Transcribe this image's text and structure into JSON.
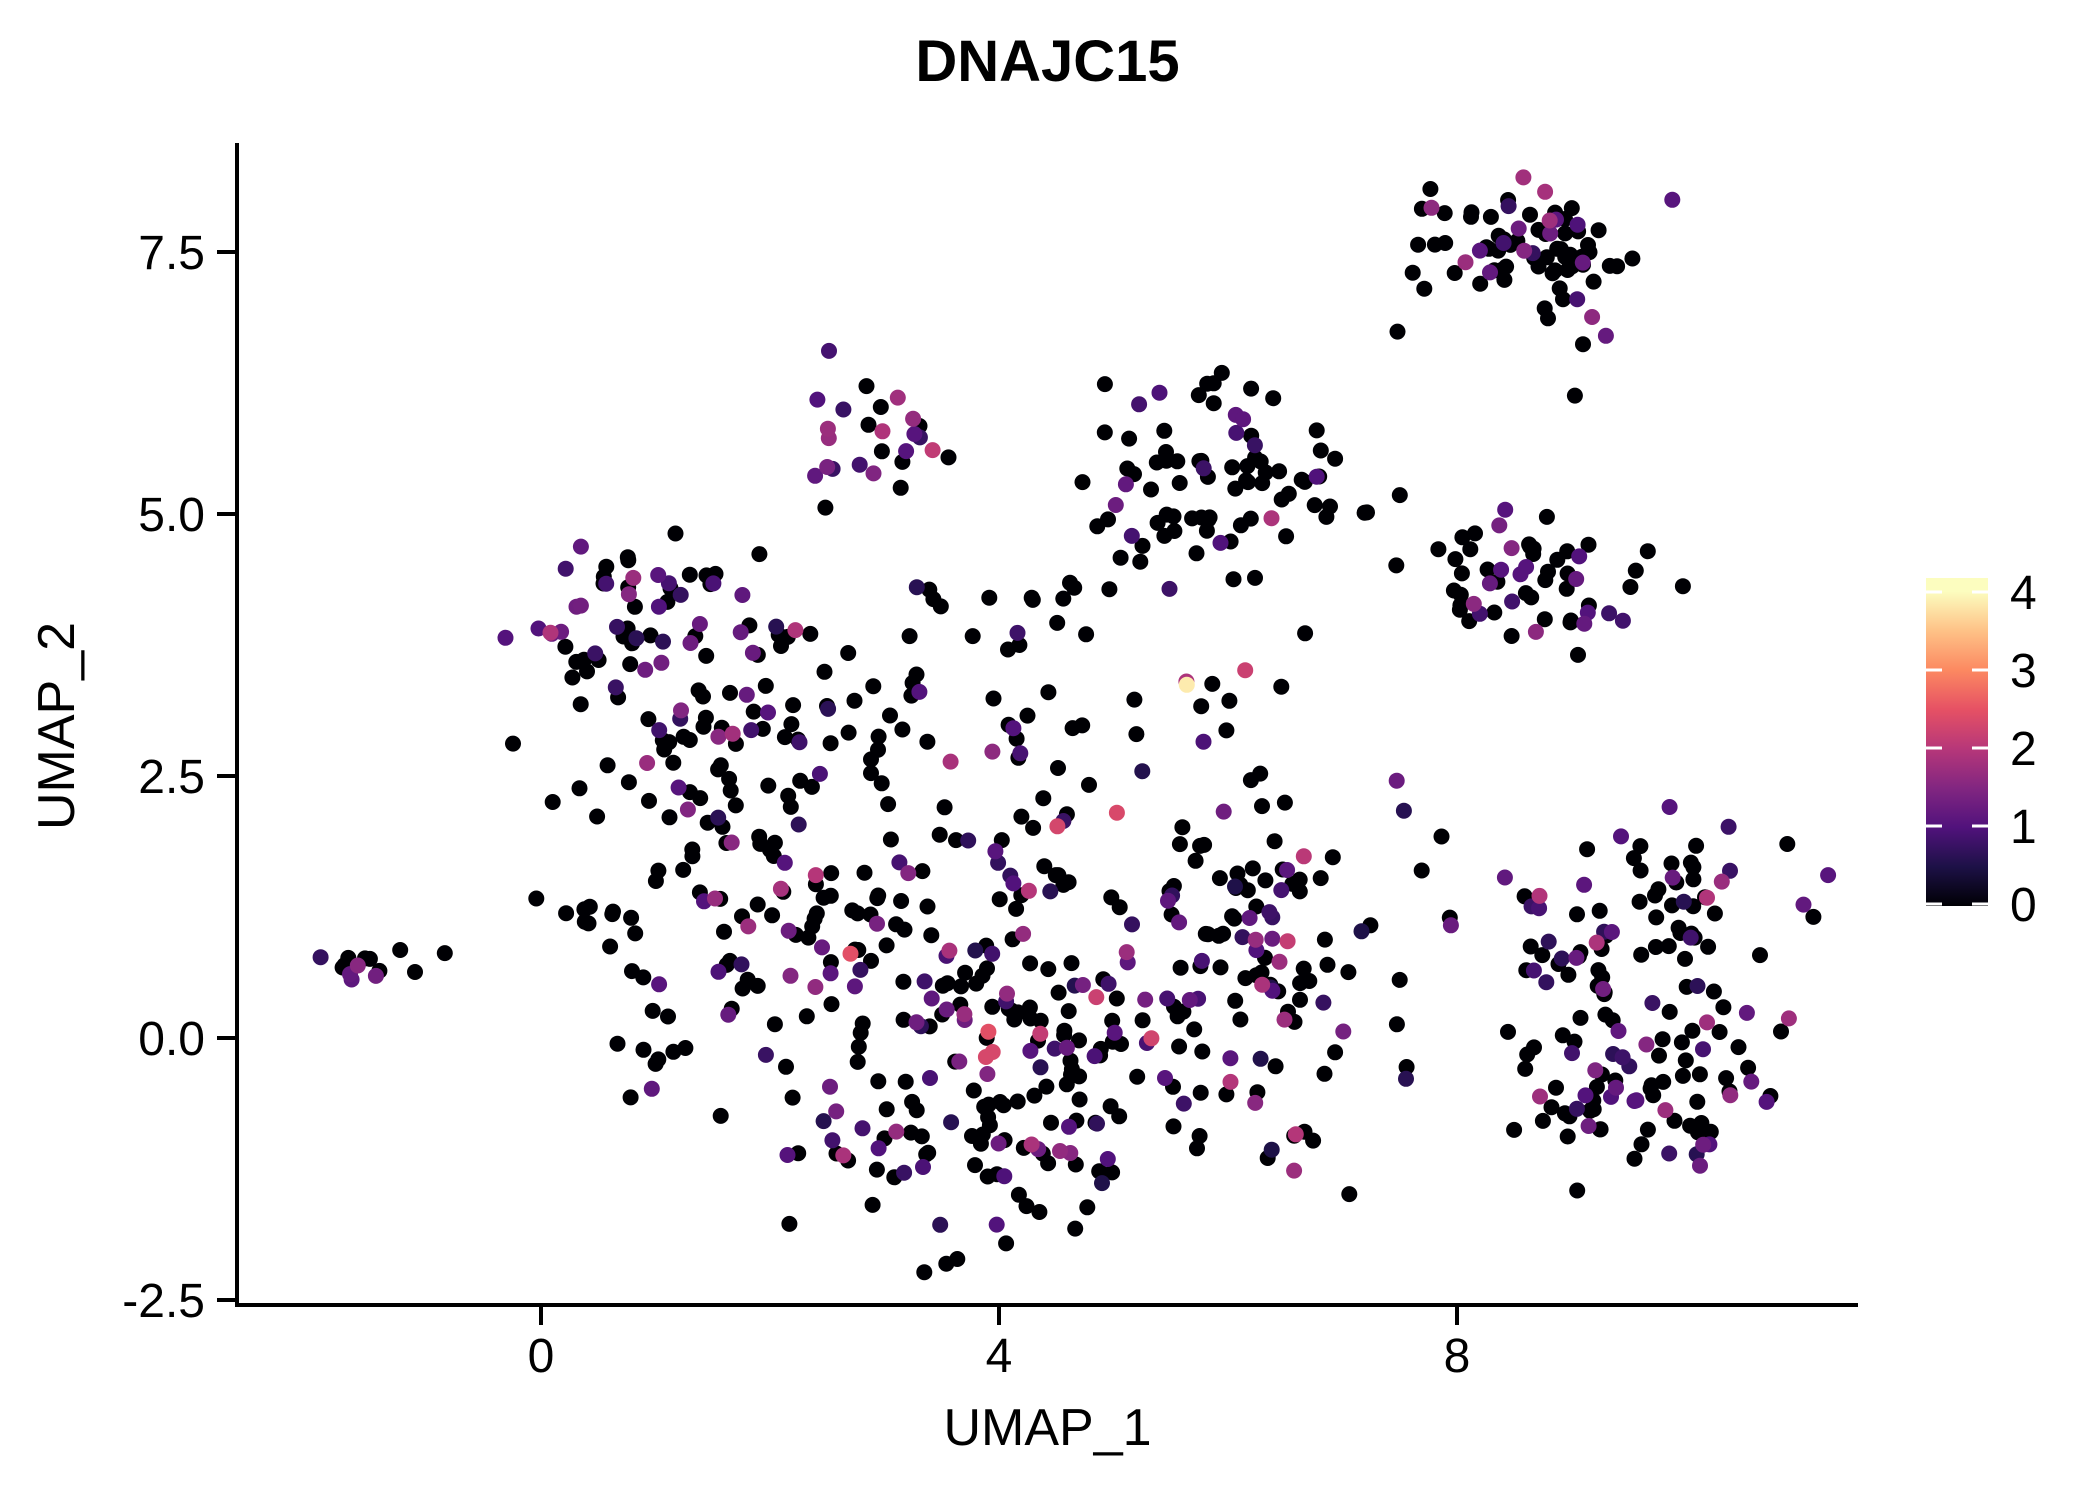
{
  "title": "DNAJC15",
  "background_color": "#ffffff",
  "axis_color": "#000000",
  "text_color": "#000000",
  "chart_data": {
    "type": "scatter",
    "title": "DNAJC15",
    "xlabel": "UMAP_1",
    "ylabel": "UMAP_2",
    "x_ticks": [
      0,
      4,
      8
    ],
    "x_tick_labels": [
      "0",
      "4",
      "8"
    ],
    "y_ticks": [
      -2.5,
      0.0,
      2.5,
      5.0,
      7.5
    ],
    "y_tick_labels": [
      "-2.5",
      "0.0",
      "2.5",
      "5.0",
      "7.5"
    ],
    "x_range": [
      -2.66,
      11.52
    ],
    "y_range": [
      -2.55,
      8.54
    ],
    "grid": false,
    "point_radius_px": 8,
    "n_points_estimate": 1030,
    "value_range": [
      0,
      4.17
    ],
    "colormap_name": "magma",
    "colormap_stops": [
      [
        0.0,
        "#000004"
      ],
      [
        0.125,
        "#1d1147"
      ],
      [
        0.25,
        "#51127c"
      ],
      [
        0.375,
        "#822681"
      ],
      [
        0.5,
        "#b73779"
      ],
      [
        0.625,
        "#e65164"
      ],
      [
        0.75,
        "#fc8961"
      ],
      [
        0.875,
        "#fec287"
      ],
      [
        1.0,
        "#fcfdbf"
      ]
    ],
    "legend": {
      "position": "right",
      "tick_values": [
        0,
        1,
        2,
        3,
        4
      ],
      "tick_labels": [
        "0",
        "1",
        "2",
        "3",
        "4"
      ],
      "tick_mark_color": "#ffffff"
    },
    "seed": 42,
    "clusters": [
      {
        "name": "far-left-blob",
        "n": 11,
        "cx": -1.63,
        "cy": 0.72,
        "sdx": 0.09,
        "sdy": 0.09,
        "expr": [
          [
            0.55,
            0,
            0
          ],
          [
            0.35,
            0.7,
            1.4
          ],
          [
            0.1,
            1.5,
            1.9
          ]
        ]
      },
      {
        "name": "left-main-upper",
        "n": 60,
        "cx": 0.9,
        "cy": 3.95,
        "sdx": 0.55,
        "sdy": 0.42,
        "expr": [
          [
            0.58,
            0,
            0
          ],
          [
            0.32,
            0.6,
            1.4
          ],
          [
            0.1,
            1.4,
            2.0
          ]
        ]
      },
      {
        "name": "left-main-lower",
        "n": 42,
        "cx": 1.55,
        "cy": 2.85,
        "sdx": 0.7,
        "sdy": 0.55,
        "expr": [
          [
            0.68,
            0,
            0
          ],
          [
            0.26,
            0.6,
            1.3
          ],
          [
            0.06,
            1.4,
            1.9
          ]
        ]
      },
      {
        "name": "top-mid-cluster",
        "n": 25,
        "cx": 2.78,
        "cy": 5.72,
        "sdx": 0.27,
        "sdy": 0.3,
        "expr": [
          [
            0.52,
            0,
            0
          ],
          [
            0.38,
            0.7,
            1.5
          ],
          [
            0.1,
            1.5,
            2.0
          ]
        ]
      },
      {
        "name": "upper-mid-black",
        "n": 80,
        "cx": 5.85,
        "cy": 5.35,
        "sdx": 0.6,
        "sdy": 0.45,
        "expr": [
          [
            0.87,
            0,
            0
          ],
          [
            0.11,
            0.7,
            1.3
          ],
          [
            0.02,
            1.7,
            2.1
          ]
        ]
      },
      {
        "name": "right-mid-cluster",
        "n": 55,
        "cx": 8.62,
        "cy": 4.25,
        "sdx": 0.5,
        "sdy": 0.38,
        "expr": [
          [
            0.68,
            0,
            0
          ],
          [
            0.24,
            0.7,
            1.4
          ],
          [
            0.08,
            1.5,
            2.0
          ]
        ]
      },
      {
        "name": "top-right-cluster",
        "n": 72,
        "cx": 8.58,
        "cy": 7.55,
        "sdx": 0.48,
        "sdy": 0.27,
        "expr": [
          [
            0.7,
            0,
            0
          ],
          [
            0.24,
            0.7,
            1.4
          ],
          [
            0.06,
            1.5,
            1.9
          ]
        ]
      },
      {
        "name": "right-bottom-upper",
        "n": 85,
        "cx": 9.6,
        "cy": 1.05,
        "sdx": 0.75,
        "sdy": 0.55,
        "expr": [
          [
            0.68,
            0,
            0
          ],
          [
            0.26,
            0.6,
            1.4
          ],
          [
            0.06,
            1.5,
            2.0
          ]
        ]
      },
      {
        "name": "right-bottom-lower",
        "n": 75,
        "cx": 9.7,
        "cy": -0.5,
        "sdx": 0.62,
        "sdy": 0.42,
        "expr": [
          [
            0.72,
            0,
            0
          ],
          [
            0.23,
            0.6,
            1.3
          ],
          [
            0.05,
            1.4,
            1.9
          ]
        ]
      },
      {
        "name": "central-upper-left",
        "n": 68,
        "cx": 1.9,
        "cy": 1.55,
        "sdx": 0.75,
        "sdy": 0.7,
        "expr": [
          [
            0.7,
            0,
            0
          ],
          [
            0.25,
            0.6,
            1.3
          ],
          [
            0.05,
            1.4,
            1.9
          ]
        ]
      },
      {
        "name": "central-core",
        "n": 150,
        "cx": 4.0,
        "cy": 0.75,
        "sdx": 1.0,
        "sdy": 0.85,
        "expr": [
          [
            0.64,
            0,
            0
          ],
          [
            0.28,
            0.5,
            1.4
          ],
          [
            0.06,
            1.5,
            2.1
          ],
          [
            0.02,
            2.1,
            2.5
          ]
        ]
      },
      {
        "name": "central-lower-band",
        "n": 88,
        "cx": 3.9,
        "cy": -1.0,
        "sdx": 1.0,
        "sdy": 0.5,
        "expr": [
          [
            0.72,
            0,
            0
          ],
          [
            0.23,
            0.5,
            1.3
          ],
          [
            0.05,
            1.4,
            1.9
          ]
        ]
      },
      {
        "name": "central-right",
        "n": 105,
        "cx": 6.2,
        "cy": 0.85,
        "sdx": 0.7,
        "sdy": 0.85,
        "expr": [
          [
            0.63,
            0,
            0
          ],
          [
            0.28,
            0.5,
            1.4
          ],
          [
            0.07,
            1.5,
            2.1
          ],
          [
            0.02,
            2.1,
            2.4
          ]
        ]
      },
      {
        "name": "upper-band",
        "n": 70,
        "cx": 3.5,
        "cy": 3.35,
        "sdx": 1.25,
        "sdy": 0.55,
        "expr": [
          [
            0.72,
            0,
            0
          ],
          [
            0.23,
            0.6,
            1.4
          ],
          [
            0.05,
            1.5,
            2.0
          ]
        ]
      },
      {
        "name": "left-streak",
        "n": 9,
        "cx": 0.5,
        "cy": 1.17,
        "sdx": 0.26,
        "sdy": 0.06,
        "expr": [
          [
            1.0,
            0,
            0
          ]
        ]
      },
      {
        "name": "left-tail",
        "n": 13,
        "cx": 0.9,
        "cy": -0.1,
        "sdx": 0.3,
        "sdy": 0.55,
        "expr": [
          [
            0.85,
            0,
            0
          ],
          [
            0.15,
            0.6,
            1.2
          ]
        ]
      }
    ],
    "points_extra": [
      [
        5.64,
        3.37,
        3.85
      ],
      [
        6.15,
        3.51,
        2.2
      ],
      [
        6.38,
        4.96,
        1.9
      ],
      [
        4.51,
        2.02,
        2.3
      ],
      [
        5.03,
        2.15,
        2.35
      ],
      [
        4.85,
        0.39,
        2.2
      ],
      [
        3.42,
        5.61,
        2.1
      ],
      [
        -1.23,
        0.84,
        0
      ],
      [
        -1.1,
        0.63,
        0
      ],
      [
        -0.84,
        0.81,
        0
      ],
      [
        7.48,
        6.74,
        0
      ],
      [
        9.03,
        6.13,
        0
      ],
      [
        7.66,
        7.57,
        0
      ],
      [
        7.98,
        7.3,
        0
      ],
      [
        9.05,
        7.05,
        0.9
      ],
      [
        9.18,
        6.88,
        1.6
      ],
      [
        9.3,
        6.7,
        1.2
      ],
      [
        9.1,
        6.62,
        0
      ],
      [
        7.5,
        5.18,
        0
      ],
      [
        7.47,
        4.51,
        0
      ],
      [
        5.2,
        2.9,
        0
      ],
      [
        9.22,
        0.91,
        1.9
      ]
    ]
  }
}
